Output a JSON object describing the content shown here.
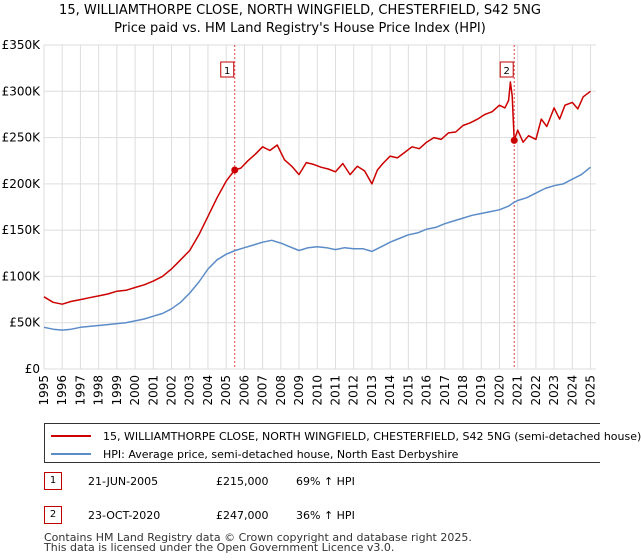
{
  "title_line1": "15, WILLIAMTHORPE CLOSE, NORTH WINGFIELD, CHESTERFIELD, S42 5NG",
  "title_line2": "Price paid vs. HM Land Registry's House Price Index (HPI)",
  "colors": {
    "property": "#cc0000",
    "hpi": "#5b8cc8",
    "grid": "#dddddd",
    "marker_line": "#dd4444"
  },
  "chart_data": {
    "type": "line",
    "title": "Price paid vs. HM Land Registry's House Price Index (HPI)",
    "xlabel": "",
    "ylabel": "",
    "xlim": [
      1995,
      2025.3
    ],
    "ylim": [
      0,
      350000
    ],
    "yticks": [
      0,
      50000,
      100000,
      150000,
      200000,
      250000,
      300000,
      350000
    ],
    "ytick_labels": [
      "£0",
      "£50K",
      "£100K",
      "£150K",
      "£200K",
      "£250K",
      "£300K",
      "£350K"
    ],
    "xticks": [
      1995,
      1996,
      1997,
      1998,
      1999,
      2000,
      2001,
      2002,
      2003,
      2004,
      2005,
      2006,
      2007,
      2008,
      2009,
      2010,
      2011,
      2012,
      2013,
      2014,
      2015,
      2016,
      2017,
      2018,
      2019,
      2020,
      2021,
      2022,
      2023,
      2024,
      2025
    ],
    "series": [
      {
        "name": "15, WILLIAMTHORPE CLOSE, NORTH WINGFIELD, CHESTERFIELD, S42 5NG (semi-detached house)",
        "color": "#cc0000",
        "x": [
          1995.0,
          1995.5,
          1996.0,
          1996.5,
          1997.0,
          1997.5,
          1998.0,
          1998.5,
          1999.0,
          1999.5,
          2000.0,
          2000.5,
          2001.0,
          2001.5,
          2002.0,
          2002.5,
          2003.0,
          2003.5,
          2004.0,
          2004.5,
          2005.0,
          2005.47,
          2005.8,
          2006.2,
          2006.6,
          2007.0,
          2007.4,
          2007.8,
          2008.2,
          2008.6,
          2009.0,
          2009.4,
          2009.8,
          2010.2,
          2010.6,
          2011.0,
          2011.4,
          2011.8,
          2012.2,
          2012.6,
          2013.0,
          2013.3,
          2013.6,
          2014.0,
          2014.4,
          2014.8,
          2015.2,
          2015.6,
          2016.0,
          2016.4,
          2016.8,
          2017.2,
          2017.6,
          2018.0,
          2018.4,
          2018.8,
          2019.2,
          2019.6,
          2020.0,
          2020.3,
          2020.5,
          2020.6,
          2020.7,
          2020.81,
          2021.0,
          2021.3,
          2021.6,
          2022.0,
          2022.3,
          2022.6,
          2023.0,
          2023.3,
          2023.6,
          2024.0,
          2024.3,
          2024.6,
          2025.0
        ],
        "values": [
          78000,
          72000,
          70000,
          73000,
          75000,
          77000,
          79000,
          81000,
          84000,
          85000,
          88000,
          91000,
          95000,
          100000,
          108000,
          118000,
          128000,
          145000,
          165000,
          185000,
          203000,
          215000,
          217000,
          225000,
          232000,
          240000,
          236000,
          242000,
          226000,
          219000,
          210000,
          223000,
          221000,
          218000,
          216000,
          213000,
          222000,
          210000,
          219000,
          214000,
          200000,
          215000,
          222000,
          230000,
          228000,
          234000,
          240000,
          238000,
          245000,
          250000,
          248000,
          255000,
          256000,
          263000,
          266000,
          270000,
          275000,
          278000,
          285000,
          282000,
          290000,
          310000,
          295000,
          247000,
          258000,
          245000,
          252000,
          248000,
          270000,
          262000,
          282000,
          270000,
          285000,
          288000,
          281000,
          294000,
          300000
        ]
      },
      {
        "name": "HPI: Average price, semi-detached house, North East Derbyshire",
        "color": "#5b8cc8",
        "x": [
          1995.0,
          1995.5,
          1996.0,
          1996.5,
          1997.0,
          1997.5,
          1998.0,
          1998.5,
          1999.0,
          1999.5,
          2000.0,
          2000.5,
          2001.0,
          2001.5,
          2002.0,
          2002.5,
          2003.0,
          2003.5,
          2004.0,
          2004.5,
          2005.0,
          2005.5,
          2006.0,
          2006.5,
          2007.0,
          2007.5,
          2008.0,
          2008.5,
          2009.0,
          2009.5,
          2010.0,
          2010.5,
          2011.0,
          2011.5,
          2012.0,
          2012.5,
          2013.0,
          2013.3,
          2013.6,
          2014.0,
          2014.5,
          2015.0,
          2015.5,
          2016.0,
          2016.5,
          2017.0,
          2017.5,
          2018.0,
          2018.5,
          2019.0,
          2019.5,
          2020.0,
          2020.5,
          2020.8,
          2021.0,
          2021.5,
          2022.0,
          2022.5,
          2023.0,
          2023.5,
          2024.0,
          2024.5,
          2025.0
        ],
        "values": [
          45000,
          43000,
          42000,
          43000,
          45000,
          46000,
          47000,
          48000,
          49000,
          50000,
          52000,
          54000,
          57000,
          60000,
          65000,
          72000,
          82000,
          94000,
          108000,
          118000,
          124000,
          128000,
          131000,
          134000,
          137000,
          139000,
          136000,
          132000,
          128000,
          131000,
          132000,
          131000,
          129000,
          131000,
          130000,
          130000,
          127000,
          130000,
          133000,
          137000,
          141000,
          145000,
          147000,
          151000,
          153000,
          157000,
          160000,
          163000,
          166000,
          168000,
          170000,
          172000,
          176000,
          180000,
          182000,
          185000,
          190000,
          195000,
          198000,
          200000,
          205000,
          210000,
          218000
        ]
      }
    ],
    "sale_markers": [
      {
        "label": "1",
        "x": 2005.47,
        "value": 215000
      },
      {
        "label": "2",
        "x": 2020.81,
        "value": 247000
      }
    ]
  },
  "legend": {
    "property_label": "15, WILLIAMTHORPE CLOSE, NORTH WINGFIELD, CHESTERFIELD, S42 5NG (semi-detached house)",
    "hpi_label": "HPI: Average price, semi-detached house, North East Derbyshire"
  },
  "sales": [
    {
      "num": "1",
      "date": "21-JUN-2005",
      "price": "£215,000",
      "hpi": "69% ↑ HPI"
    },
    {
      "num": "2",
      "date": "23-OCT-2020",
      "price": "£247,000",
      "hpi": "36% ↑ HPI"
    }
  ],
  "footer": {
    "line1": "Contains HM Land Registry data © Crown copyright and database right 2025.",
    "line2": "This data is licensed under the Open Government Licence v3.0."
  }
}
